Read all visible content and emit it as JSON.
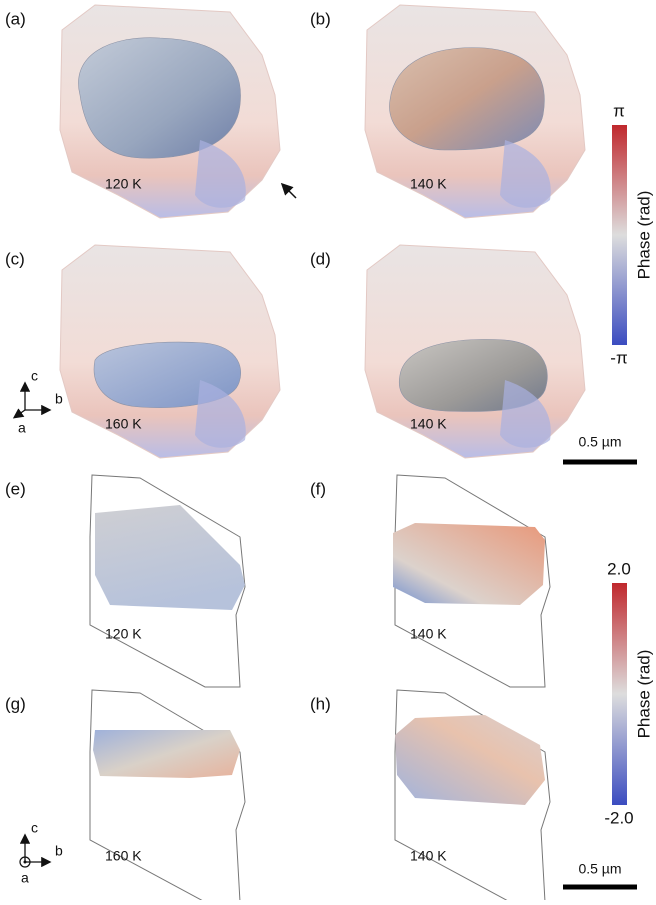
{
  "panels": [
    {
      "label": "(a)",
      "temperature": "120 K"
    },
    {
      "label": "(b)",
      "temperature": "140 K"
    },
    {
      "label": "(c)",
      "temperature": "160 K"
    },
    {
      "label": "(d)",
      "temperature": "140 K"
    },
    {
      "label": "(e)",
      "temperature": "120 K"
    },
    {
      "label": "(f)",
      "temperature": "140 K"
    },
    {
      "label": "(g)",
      "temperature": "160 K"
    },
    {
      "label": "(h)",
      "temperature": "140 K"
    }
  ],
  "colorbars": [
    {
      "max": "π",
      "min": "-π",
      "title": "Phase (rad)"
    },
    {
      "max": "2.0",
      "min": "-2.0",
      "title": "Phase (rad)"
    }
  ],
  "scale_bars": [
    {
      "label": "0.5 µm"
    },
    {
      "label": "0.5 µm"
    }
  ],
  "axes_triads": [
    {
      "up": "c",
      "right": "b",
      "out": "a"
    },
    {
      "up": "c",
      "right": "b",
      "out": "a"
    }
  ]
}
